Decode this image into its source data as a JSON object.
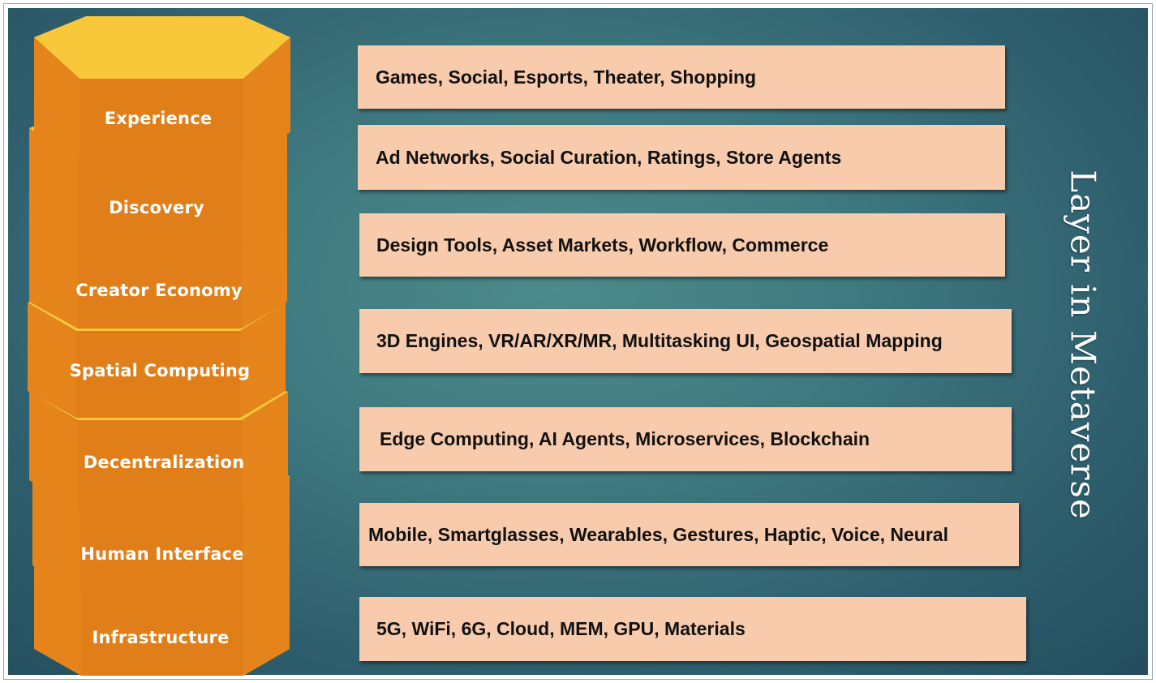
{
  "title": "Layer in Metaverse",
  "colors": {
    "prism_top": "#f9c83a",
    "prism_side": "#e88a1e",
    "prism_front": "#e07e19",
    "box_fill": "#f9cbad",
    "background": "#2f6270"
  },
  "layers": [
    {
      "name": "Experience",
      "description": "Games, Social, Esports, Theater, Shopping"
    },
    {
      "name": "Discovery",
      "description": "Ad Networks, Social Curation, Ratings, Store Agents"
    },
    {
      "name": "Creator Economy",
      "description": "Design Tools, Asset Markets, Workflow, Commerce"
    },
    {
      "name": "Spatial Computing",
      "description": "3D Engines, VR/AR/XR/MR, Multitasking UI, Geospatial Mapping"
    },
    {
      "name": "Decentralization",
      "description": "Edge Computing, AI Agents, Microservices, Blockchain"
    },
    {
      "name": "Human Interface",
      "description": "Mobile, Smartglasses, Wearables, Gestures, Haptic, Voice, Neural"
    },
    {
      "name": "Infrastructure",
      "description": "5G, WiFi, 6G, Cloud, MEM, GPU, Materials"
    }
  ]
}
